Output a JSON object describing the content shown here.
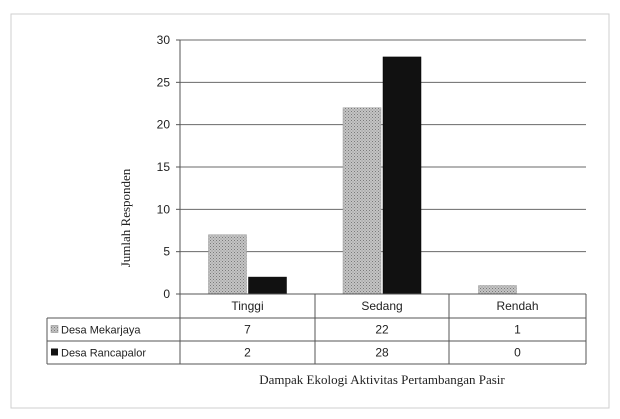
{
  "chart_data": {
    "type": "bar",
    "title": "",
    "xlabel": "Dampak Ekologi Aktivitas Pertambangan Pasir",
    "ylabel": "Jumlah Responden",
    "ylim": [
      0,
      30
    ],
    "yticks": [
      0,
      5,
      10,
      15,
      20,
      25,
      30
    ],
    "grid": true,
    "legend": "data-table-row-labels",
    "categories": [
      "Tinggi",
      "Sedang",
      "Rendah"
    ],
    "series": [
      {
        "name": "Desa Mekarjaya",
        "values": [
          7,
          22,
          1
        ],
        "color": "#b8b8b8",
        "pattern": "dotted-gray"
      },
      {
        "name": "Desa Rancapalor",
        "values": [
          2,
          28,
          0
        ],
        "color": "#111111",
        "pattern": "solid-black"
      }
    ]
  }
}
